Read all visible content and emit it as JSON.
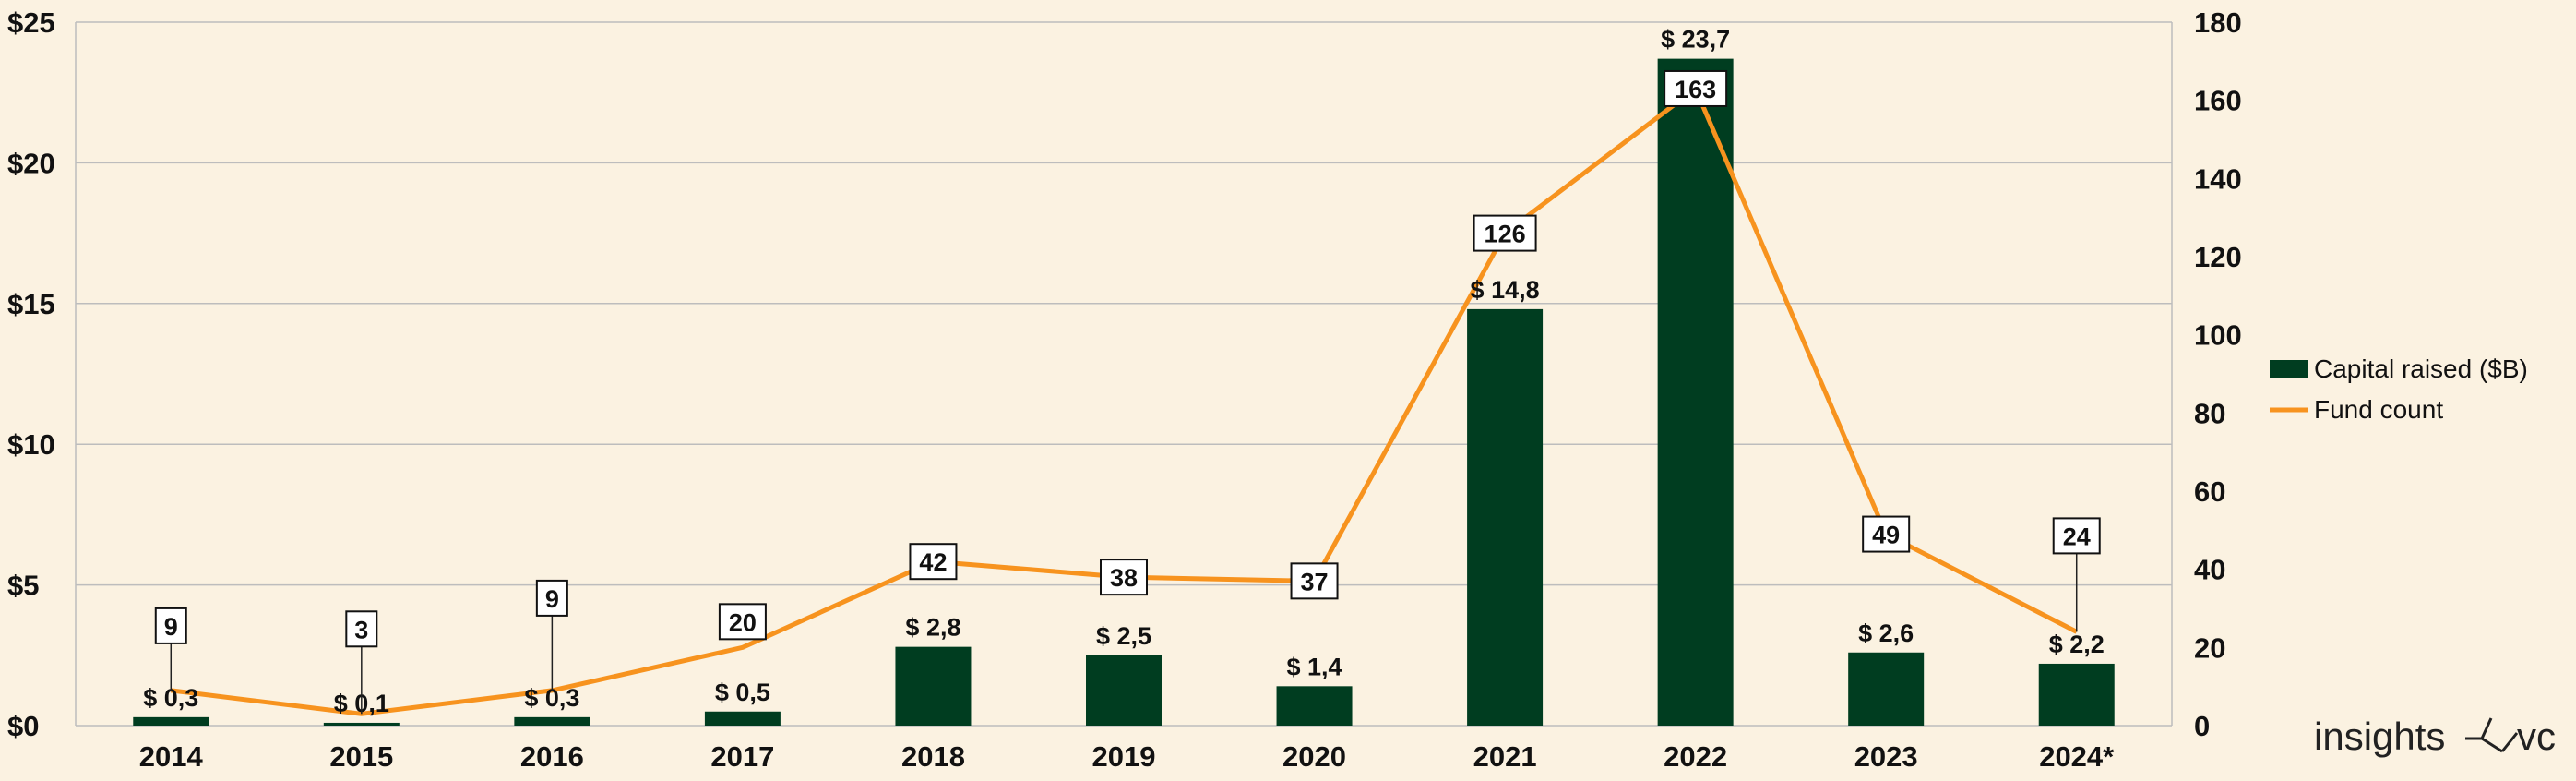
{
  "chart_data": {
    "type": "bar",
    "categories": [
      "2014",
      "2015",
      "2016",
      "2017",
      "2018",
      "2019",
      "2020",
      "2021",
      "2022",
      "2023",
      "2024*"
    ],
    "series": [
      {
        "name": "Capital raised ($B)",
        "type": "bar",
        "axis": "left",
        "values": [
          0.3,
          0.1,
          0.3,
          0.5,
          2.8,
          2.5,
          1.4,
          14.8,
          23.7,
          2.6,
          2.2
        ],
        "labels": [
          "$ 0,3",
          "$ 0,1",
          "$ 0,3",
          "$ 0,5",
          "$ 2,8",
          "$ 2,5",
          "$ 1,4",
          "$ 14,8",
          "$ 23,7",
          "$ 2,6",
          "$ 2,2"
        ],
        "color": "#003d20"
      },
      {
        "name": "Fund count",
        "type": "line",
        "axis": "right",
        "values": [
          9,
          3,
          9,
          20,
          42,
          38,
          37,
          126,
          163,
          49,
          24
        ],
        "labels": [
          "9",
          "3",
          "9",
          "20",
          "42",
          "38",
          "37",
          "126",
          "163",
          "49",
          "24"
        ],
        "color": "#f7931e"
      }
    ],
    "y_left": {
      "ylim": [
        0,
        25
      ],
      "ticks": [
        0,
        5,
        10,
        15,
        20,
        25
      ],
      "tick_labels": [
        "$0",
        "$5",
        "$10",
        "$15",
        "$20",
        "$25"
      ]
    },
    "y_right": {
      "ylim": [
        0,
        180
      ],
      "ticks": [
        0,
        20,
        40,
        60,
        80,
        100,
        120,
        140,
        160,
        180
      ],
      "tick_labels": [
        "0",
        "20",
        "40",
        "60",
        "80",
        "100",
        "120",
        "140",
        "160",
        "180"
      ]
    },
    "grid": true,
    "legend_position": "right",
    "title": "",
    "xlabel": "",
    "ylabel": ""
  },
  "brand": {
    "text_left": "insights",
    "text_right": "vc"
  },
  "colors": {
    "background": "#fbf2e1",
    "grid": "#bdbdbd",
    "bar": "#003d20",
    "line": "#f7931e"
  }
}
